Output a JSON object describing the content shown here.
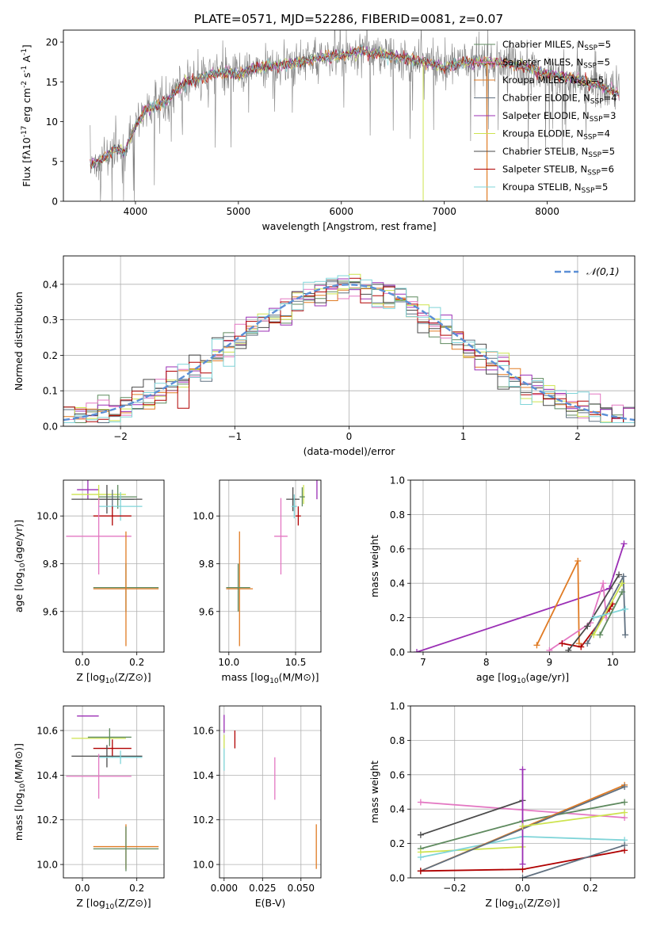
{
  "title": "PLATE=0571, MJD=52286, FIBERID=0081, z=0.07",
  "series_labels": [
    "Chabrier MILES, N$_{SSP}$=5",
    "Salpeter MILES, N$_{SSP}$=5",
    "Kroupa MILES, N$_{SSP}$=5",
    "Chabrier ELODIE, N$_{SSP}$=4",
    "Salpeter ELODIE, N$_{SSP}$=3",
    "Kroupa ELODIE, N$_{SSP}$=4",
    "Chabrier STELIB, N$_{SSP}$=5",
    "Salpeter STELIB, N$_{SSP}$=6",
    "Kroupa STELIB, N$_{SSP}$=5"
  ],
  "colors": {
    "chab_miles": "#5f8a5f",
    "salp_miles": "#e377c2",
    "krou_miles": "#e07b24",
    "chab_elodie": "#607080",
    "salp_elodie": "#9b2fb5",
    "krou_elodie": "#cde34f",
    "chab_stelib": "#4a4a4a",
    "salp_stelib": "#b00000",
    "krou_stelib": "#7fd4d8",
    "data": "#808080",
    "normal": "#5b8fd6",
    "grid": "#b0b0b0"
  },
  "chart_data": [
    {
      "id": "spectrum",
      "type": "line",
      "title": "PLATE=0571, MJD=52286, FIBERID=0081, z=0.07",
      "xlabel": "wavelength [Angstrom, rest frame]",
      "ylabel": "Flux [f$_\\lambda 10^{-17}$ erg cm$^{-2}$ s$^{-1}$ A$^{-1}$]",
      "xlim": [
        3300,
        8850
      ],
      "ylim": [
        0,
        21.5
      ],
      "xticks": [
        4000,
        5000,
        6000,
        7000,
        8000
      ],
      "yticks": [
        0,
        5,
        10,
        15,
        20
      ],
      "grid": false,
      "legend": "right",
      "continuum": [
        [
          3560,
          4.5
        ],
        [
          3700,
          5.5
        ],
        [
          3800,
          6.5
        ],
        [
          3900,
          6.2
        ],
        [
          4000,
          9.5
        ],
        [
          4100,
          11.5
        ],
        [
          4200,
          12.0
        ],
        [
          4300,
          12.5
        ],
        [
          4400,
          14.0
        ],
        [
          4500,
          15.0
        ],
        [
          4700,
          15.8
        ],
        [
          4900,
          16.2
        ],
        [
          5000,
          16.0
        ],
        [
          5200,
          16.8
        ],
        [
          5500,
          17.2
        ],
        [
          5800,
          18.0
        ],
        [
          6000,
          18.3
        ],
        [
          6200,
          18.8
        ],
        [
          6500,
          18.2
        ],
        [
          6800,
          17.5
        ],
        [
          7000,
          16.8
        ],
        [
          7200,
          17.5
        ],
        [
          7500,
          17.5
        ],
        [
          7800,
          16.8
        ],
        [
          8000,
          16.0
        ],
        [
          8300,
          15.3
        ],
        [
          8500,
          14.5
        ],
        [
          8700,
          13.5
        ]
      ]
    },
    {
      "id": "residuals",
      "type": "bar",
      "xlabel": "(data-model)/error",
      "ylabel": "Normed distribution",
      "xlim": [
        -2.5,
        2.5
      ],
      "ylim": [
        0,
        0.48
      ],
      "xticks": [
        -2,
        -1,
        0,
        1,
        2
      ],
      "yticks": [
        0.0,
        0.1,
        0.2,
        0.3,
        0.4
      ],
      "grid": true,
      "legend": "top-right",
      "legend_label": "$\\mathcal{N}(0,1)$"
    },
    {
      "id": "age_vs_Z",
      "type": "scatter",
      "xlabel": "Z [log$_{10}$(Z/Z$_\\odot$)]",
      "ylabel": "age  [log$_{10}$(age/yr)]",
      "xlim": [
        -0.07,
        0.3
      ],
      "ylim": [
        9.43,
        10.15
      ],
      "xticks": [
        0.0,
        0.2
      ],
      "yticks": [
        9.6,
        9.8,
        10.0
      ],
      "grid": true,
      "points": [
        {
          "s": "salp_elodie",
          "x": 0.02,
          "y": 10.11,
          "xe": 0.04,
          "ye": 0.04
        },
        {
          "s": "krou_elodie",
          "x": 0.06,
          "y": 10.09,
          "xe": 0.1,
          "ye": 0.04
        },
        {
          "s": "chab_miles",
          "x": 0.13,
          "y": 10.08,
          "xe": 0.07,
          "ye": 0.05
        },
        {
          "s": "chab_elodie",
          "x": 0.11,
          "y": 10.07,
          "xe": 0.08,
          "ye": 0.04
        },
        {
          "s": "chab_stelib",
          "x": 0.09,
          "y": 10.07,
          "xe": 0.13,
          "ye": 0.06
        },
        {
          "s": "krou_stelib",
          "x": 0.14,
          "y": 10.04,
          "xe": 0.08,
          "ye": 0.06
        },
        {
          "s": "salp_stelib",
          "x": 0.11,
          "y": 10.0,
          "xe": 0.07,
          "ye": 0.04
        },
        {
          "s": "salp_miles",
          "x": 0.06,
          "y": 9.915,
          "xe": 0.12,
          "ye": 0.16
        },
        {
          "s": "chab_miles",
          "x": 0.16,
          "y": 9.7,
          "xe": 0.12,
          "ye": 0.1
        },
        {
          "s": "krou_miles",
          "x": 0.16,
          "y": 9.695,
          "xe": 0.12,
          "ye": 0.24
        }
      ]
    },
    {
      "id": "age_vs_mass",
      "type": "scatter",
      "xlabel": "mass [log$_{10}$(M/M$_\\odot$)]",
      "ylabel": "",
      "xlim": [
        9.93,
        10.69
      ],
      "ylim": [
        9.43,
        10.15
      ],
      "xticks": [
        10.0,
        10.5
      ],
      "yticks": [
        9.6,
        9.8,
        10.0
      ],
      "grid": true,
      "points": [
        {
          "s": "salp_elodie",
          "x": 10.66,
          "y": 10.11,
          "xe": 0.0,
          "ye": 0.04
        },
        {
          "s": "krou_elodie",
          "x": 10.56,
          "y": 10.09,
          "xe": 0.0,
          "ye": 0.04
        },
        {
          "s": "chab_miles",
          "x": 10.55,
          "y": 10.08,
          "xe": 0.02,
          "ye": 0.04
        },
        {
          "s": "chab_stelib",
          "x": 10.48,
          "y": 10.07,
          "xe": 0.05,
          "ye": 0.05
        },
        {
          "s": "krou_stelib",
          "x": 10.49,
          "y": 10.04,
          "xe": 0.02,
          "ye": 0.05
        },
        {
          "s": "salp_stelib",
          "x": 10.52,
          "y": 10.0,
          "xe": 0.02,
          "ye": 0.04
        },
        {
          "s": "salp_miles",
          "x": 10.39,
          "y": 9.915,
          "xe": 0.05,
          "ye": 0.16
        },
        {
          "s": "krou_miles",
          "x": 10.08,
          "y": 9.695,
          "xe": 0.1,
          "ye": 0.24
        },
        {
          "s": "chab_miles",
          "x": 10.07,
          "y": 9.7,
          "xe": 0.09,
          "ye": 0.1
        }
      ]
    },
    {
      "id": "weight_vs_age",
      "type": "line",
      "xlabel": "age  [log$_{10}$(age/yr)]",
      "ylabel": "mass weight",
      "xlim": [
        6.8,
        10.35
      ],
      "ylim": [
        0,
        1.0
      ],
      "xticks": [
        7,
        8,
        9,
        10
      ],
      "yticks": [
        0.0,
        0.2,
        0.4,
        0.6,
        0.8,
        1.0
      ],
      "grid": true,
      "series": [
        {
          "s": "salp_elodie",
          "points": [
            [
              6.9,
              0.0
            ],
            [
              9.95,
              0.37
            ],
            [
              10.18,
              0.63
            ]
          ]
        },
        {
          "s": "krou_miles",
          "points": [
            [
              8.8,
              0.04
            ],
            [
              9.45,
              0.53
            ],
            [
              9.47,
              0.05
            ]
          ]
        },
        {
          "s": "salp_miles",
          "points": [
            [
              9.0,
              0.01
            ],
            [
              9.65,
              0.17
            ],
            [
              9.85,
              0.4
            ],
            [
              9.9,
              0.2
            ]
          ]
        },
        {
          "s": "salp_stelib",
          "points": [
            [
              9.2,
              0.05
            ],
            [
              9.5,
              0.03
            ],
            [
              9.95,
              0.25
            ],
            [
              10.0,
              0.28
            ]
          ]
        },
        {
          "s": "chab_stelib",
          "points": [
            [
              9.3,
              0.01
            ],
            [
              9.6,
              0.15
            ],
            [
              10.1,
              0.45
            ]
          ]
        },
        {
          "s": "chab_elodie",
          "points": [
            [
              9.6,
              0.05
            ],
            [
              10.17,
              0.44
            ],
            [
              10.2,
              0.1
            ]
          ]
        },
        {
          "s": "krou_elodie",
          "points": [
            [
              9.7,
              0.1
            ],
            [
              10.15,
              0.4
            ]
          ]
        },
        {
          "s": "krou_stelib",
          "points": [
            [
              9.7,
              0.2
            ],
            [
              10.2,
              0.25
            ]
          ]
        },
        {
          "s": "chab_miles",
          "points": [
            [
              9.8,
              0.1
            ],
            [
              10.15,
              0.35
            ]
          ]
        }
      ]
    },
    {
      "id": "mass_vs_Z",
      "type": "scatter",
      "xlabel": "Z [log$_{10}$(Z/Z$_\\odot$)]",
      "ylabel": "mass [log$_{10}$(M/M$_\\odot$)]",
      "xlim": [
        -0.07,
        0.3
      ],
      "ylim": [
        9.94,
        10.71
      ],
      "xticks": [
        0.0,
        0.2
      ],
      "yticks": [
        10.0,
        10.2,
        10.4,
        10.6
      ],
      "grid": true,
      "points": [
        {
          "s": "salp_elodie",
          "x": 0.02,
          "y": 10.665,
          "xe": 0.04,
          "ye": 0.0
        },
        {
          "s": "krou_elodie",
          "x": 0.06,
          "y": 10.565,
          "xe": 0.1,
          "ye": 0.0
        },
        {
          "s": "chab_miles",
          "x": 0.1,
          "y": 10.57,
          "xe": 0.08,
          "ye": 0.04
        },
        {
          "s": "salp_stelib",
          "x": 0.11,
          "y": 10.52,
          "xe": 0.07,
          "ye": 0.04
        },
        {
          "s": "chab_stelib",
          "x": 0.09,
          "y": 10.485,
          "xe": 0.13,
          "ye": 0.05
        },
        {
          "s": "krou_stelib",
          "x": 0.14,
          "y": 10.48,
          "xe": 0.08,
          "ye": 0.03
        },
        {
          "s": "salp_miles",
          "x": 0.06,
          "y": 10.395,
          "xe": 0.12,
          "ye": 0.1
        },
        {
          "s": "krou_miles",
          "x": 0.16,
          "y": 10.08,
          "xe": 0.12,
          "ye": 0.1
        },
        {
          "s": "chab_miles",
          "x": 0.16,
          "y": 10.07,
          "xe": 0.12,
          "ye": 0.1
        }
      ]
    },
    {
      "id": "mass_vs_ebv",
      "type": "scatter",
      "xlabel": "E(B-V)",
      "ylabel": "",
      "xlim": [
        -0.003,
        0.063
      ],
      "ylim": [
        9.94,
        10.71
      ],
      "xticks": [
        0.0,
        0.025,
        0.05
      ],
      "yticks": [
        10.0,
        10.2,
        10.4,
        10.6
      ],
      "grid": true,
      "points": [
        {
          "s": "salp_elodie",
          "x": 0.0,
          "y": 10.63,
          "xe": 0.0,
          "ye": 0.04
        },
        {
          "s": "krou_elodie",
          "x": 0.0,
          "y": 10.55,
          "xe": 0.0,
          "ye": 0.03
        },
        {
          "s": "krou_stelib",
          "x": 0.0,
          "y": 10.47,
          "xe": 0.0,
          "ye": 0.05
        },
        {
          "s": "salp_stelib",
          "x": 0.007,
          "y": 10.56,
          "xe": 0.0,
          "ye": 0.04
        },
        {
          "s": "salp_miles",
          "x": 0.033,
          "y": 10.385,
          "xe": 0.0,
          "ye": 0.095
        },
        {
          "s": "krou_miles",
          "x": 0.06,
          "y": 10.08,
          "xe": 0.0,
          "ye": 0.1
        }
      ]
    },
    {
      "id": "weight_vs_Z",
      "type": "line",
      "xlabel": "Z [log$_{10}$(Z/Z$_\\odot$)]",
      "ylabel": "mass weight",
      "xlim": [
        -0.33,
        0.33
      ],
      "ylim": [
        0,
        1.0
      ],
      "xticks": [
        -0.2,
        0.0,
        0.2
      ],
      "yticks": [
        0.0,
        0.2,
        0.4,
        0.6,
        0.8,
        1.0
      ],
      "grid": true,
      "series": [
        {
          "s": "salp_miles",
          "points": [
            [
              -0.3,
              0.44
            ],
            [
              0.3,
              0.35
            ]
          ]
        },
        {
          "s": "chab_stelib",
          "points": [
            [
              -0.3,
              0.25
            ],
            [
              0.0,
              0.45
            ]
          ]
        },
        {
          "s": "chab_miles",
          "points": [
            [
              -0.3,
              0.17
            ],
            [
              0.0,
              0.33
            ],
            [
              0.3,
              0.44
            ]
          ]
        },
        {
          "s": "krou_elodie",
          "points": [
            [
              -0.3,
              0.15
            ],
            [
              0.0,
              0.18
            ]
          ]
        },
        {
          "s": "krou_stelib",
          "points": [
            [
              -0.3,
              0.12
            ],
            [
              0.0,
              0.24
            ],
            [
              0.3,
              0.22
            ]
          ]
        },
        {
          "s": "krou_miles",
          "points": [
            [
              -0.3,
              0.04
            ],
            [
              0.3,
              0.54
            ]
          ]
        },
        {
          "s": "chab_elodie",
          "points": [
            [
              -0.3,
              0.04
            ],
            [
              0.3,
              0.53
            ]
          ]
        },
        {
          "s": "salp_stelib",
          "points": [
            [
              -0.3,
              0.04
            ],
            [
              0.0,
              0.05
            ],
            [
              0.3,
              0.16
            ]
          ]
        },
        {
          "s": "salp_elodie",
          "points": [
            [
              0.0,
              0.63
            ],
            [
              0.0,
              0.08
            ]
          ]
        },
        {
          "s": "chab_elodie",
          "points": [
            [
              0.0,
              0.0
            ],
            [
              0.3,
              0.19
            ]
          ]
        },
        {
          "s": "krou_elodie",
          "points": [
            [
              0.0,
              0.3
            ],
            [
              0.3,
              0.38
            ]
          ]
        }
      ]
    }
  ]
}
